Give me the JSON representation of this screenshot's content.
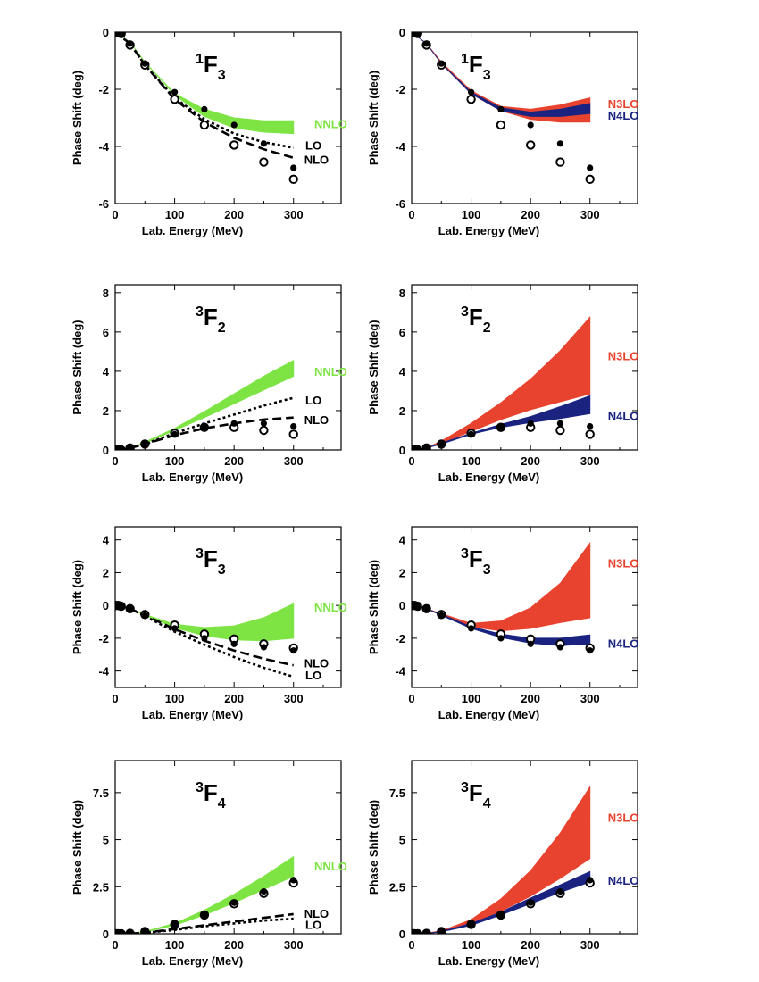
{
  "colors": {
    "nnlo": "#7de444",
    "n3lo": "#e8432e",
    "n4lo": "#1a2480",
    "black": "#000000"
  },
  "chart_data": [
    {
      "type": "line",
      "wave": {
        "sup": "1",
        "main": "F",
        "sub": "3"
      },
      "xlabel": "Lab. Energy (MeV)",
      "ylabel": "Phase Shift (deg)",
      "xlim": [
        0,
        380
      ],
      "ylim": [
        -6,
        0
      ],
      "xticks": [
        0,
        100,
        200,
        300
      ],
      "yticks": [
        -6,
        -4,
        -2,
        0
      ],
      "ytick_labels": [
        "-6",
        "-4",
        "-2",
        "0"
      ],
      "x": [
        0,
        25,
        50,
        100,
        150,
        200,
        250,
        300
      ],
      "bands": [
        {
          "name": "NNLO",
          "color_key": "nnlo",
          "low": [
            0,
            -0.35,
            -1.05,
            -2.2,
            -2.95,
            -3.35,
            -3.5,
            -3.55
          ],
          "high": [
            0,
            -0.35,
            -1.05,
            -2.15,
            -2.7,
            -3.0,
            -3.1,
            -3.1
          ]
        }
      ],
      "lines": [
        {
          "name": "LO",
          "style": "dotted",
          "values": [
            0,
            -0.4,
            -1.15,
            -2.3,
            -3.05,
            -3.55,
            -3.85,
            -4.05
          ]
        },
        {
          "name": "NLO",
          "style": "dashed",
          "values": [
            0,
            -0.4,
            -1.15,
            -2.35,
            -3.15,
            -3.7,
            -4.1,
            -4.4
          ]
        }
      ],
      "data_points": {
        "x": [
          1,
          5,
          10,
          25,
          50,
          100,
          150,
          200,
          250,
          300
        ],
        "filled": [
          0,
          0,
          -0.05,
          -0.4,
          -1.1,
          -2.1,
          -2.7,
          -3.25,
          -3.9,
          -4.75
        ],
        "open": [
          0,
          0,
          -0.05,
          -0.45,
          -1.15,
          -2.35,
          -3.25,
          -3.95,
          -4.55,
          -5.15
        ]
      },
      "labels": [
        {
          "text": "NNLO",
          "color_key": "nnlo",
          "x": 335,
          "y": -3.2
        },
        {
          "text": "LO",
          "color_key": "black",
          "x": 320,
          "y": -3.95
        },
        {
          "text": "NLO",
          "color_key": "black",
          "x": 318,
          "y": -4.45
        }
      ]
    },
    {
      "type": "line",
      "wave": {
        "sup": "1",
        "main": "F",
        "sub": "3"
      },
      "xlabel": "Lab. Energy (MeV)",
      "ylabel": "Phase Shift (deg)",
      "xlim": [
        0,
        380
      ],
      "ylim": [
        -6,
        0
      ],
      "xticks": [
        0,
        100,
        200,
        300
      ],
      "yticks": [
        -6,
        -4,
        -2,
        0
      ],
      "ytick_labels": [
        "-6",
        "-4",
        "-2",
        "0"
      ],
      "x": [
        0,
        25,
        50,
        100,
        150,
        200,
        250,
        300
      ],
      "bands": [
        {
          "name": "N3LO",
          "color_key": "n3lo",
          "low": [
            0,
            -0.4,
            -1.1,
            -2.15,
            -2.75,
            -3.05,
            -3.15,
            -3.15
          ],
          "high": [
            0,
            -0.4,
            -1.05,
            -2.05,
            -2.6,
            -2.7,
            -2.55,
            -2.3
          ]
        },
        {
          "name": "N4LO",
          "color_key": "n4lo",
          "low": [
            0,
            -0.4,
            -1.1,
            -2.15,
            -2.75,
            -2.95,
            -2.95,
            -2.85
          ],
          "high": [
            0,
            -0.4,
            -1.1,
            -2.1,
            -2.65,
            -2.8,
            -2.7,
            -2.5
          ]
        }
      ],
      "lines": [],
      "data_points": {
        "x": [
          1,
          5,
          10,
          25,
          50,
          100,
          150,
          200,
          250,
          300
        ],
        "filled": [
          0,
          0,
          -0.05,
          -0.4,
          -1.1,
          -2.1,
          -2.7,
          -3.25,
          -3.9,
          -4.75
        ],
        "open": [
          0,
          0,
          -0.05,
          -0.45,
          -1.15,
          -2.35,
          -3.25,
          -3.95,
          -4.55,
          -5.15
        ]
      },
      "labels": [
        {
          "text": "N3LO",
          "color_key": "n3lo",
          "x": 330,
          "y": -2.5
        },
        {
          "text": "N4LO",
          "color_key": "n4lo",
          "x": 330,
          "y": -2.9
        }
      ]
    },
    {
      "type": "line",
      "wave": {
        "sup": "3",
        "main": "F",
        "sub": "2"
      },
      "xlabel": "Lab. Energy (MeV)",
      "ylabel": "Phase Shift (deg)",
      "xlim": [
        0,
        380
      ],
      "ylim": [
        0,
        8.4
      ],
      "xticks": [
        0,
        100,
        200,
        300
      ],
      "yticks": [
        0,
        2,
        4,
        6,
        8
      ],
      "ytick_labels": [
        "0",
        "2",
        "4",
        "6",
        "8"
      ],
      "x": [
        0,
        25,
        50,
        100,
        150,
        200,
        250,
        300
      ],
      "bands": [
        {
          "name": "NNLO",
          "color_key": "nnlo",
          "low": [
            0,
            0.1,
            0.35,
            1.0,
            1.65,
            2.35,
            3.05,
            3.75
          ],
          "high": [
            0,
            0.1,
            0.4,
            1.1,
            1.95,
            2.85,
            3.75,
            4.55
          ]
        }
      ],
      "lines": [
        {
          "name": "LO",
          "style": "dotted",
          "values": [
            0,
            0.1,
            0.3,
            0.85,
            1.35,
            1.8,
            2.25,
            2.65
          ]
        },
        {
          "name": "NLO",
          "style": "dashed",
          "values": [
            0,
            0.1,
            0.3,
            0.75,
            1.1,
            1.35,
            1.55,
            1.65
          ]
        }
      ],
      "data_points": {
        "x": [
          1,
          5,
          10,
          25,
          50,
          100,
          150,
          200,
          250,
          300
        ],
        "filled": [
          0,
          0,
          0,
          0.1,
          0.3,
          0.8,
          1.15,
          1.35,
          1.35,
          1.2
        ],
        "open": [
          0,
          0,
          0,
          0.1,
          0.3,
          0.85,
          1.15,
          1.15,
          1.0,
          0.8
        ]
      },
      "labels": [
        {
          "text": "NNLO",
          "color_key": "nnlo",
          "x": 335,
          "y": 4.0
        },
        {
          "text": "LO",
          "color_key": "black",
          "x": 320,
          "y": 2.55
        },
        {
          "text": "NLO",
          "color_key": "black",
          "x": 318,
          "y": 1.55
        }
      ]
    },
    {
      "type": "line",
      "wave": {
        "sup": "3",
        "main": "F",
        "sub": "2"
      },
      "xlabel": "Lab. Energy (MeV)",
      "ylabel": "Phase Shift (deg)",
      "xlim": [
        0,
        380
      ],
      "ylim": [
        0,
        8.4
      ],
      "xticks": [
        0,
        100,
        200,
        300
      ],
      "yticks": [
        0,
        2,
        4,
        6,
        8
      ],
      "ytick_labels": [
        "0",
        "2",
        "4",
        "6",
        "8"
      ],
      "x": [
        0,
        25,
        50,
        100,
        150,
        200,
        250,
        300
      ],
      "bands": [
        {
          "name": "N3LO",
          "color_key": "n3lo",
          "low": [
            0,
            0.1,
            0.35,
            0.95,
            1.55,
            2.05,
            2.45,
            2.85
          ],
          "high": [
            0,
            0.1,
            0.45,
            1.35,
            2.4,
            3.6,
            5.05,
            6.75
          ]
        },
        {
          "name": "N4LO",
          "color_key": "n4lo",
          "low": [
            0,
            0.1,
            0.3,
            0.8,
            1.15,
            1.4,
            1.6,
            1.85
          ],
          "high": [
            0,
            0.1,
            0.35,
            0.85,
            1.3,
            1.7,
            2.2,
            2.75
          ]
        }
      ],
      "lines": [],
      "data_points": {
        "x": [
          1,
          5,
          10,
          25,
          50,
          100,
          150,
          200,
          250,
          300
        ],
        "filled": [
          0,
          0,
          0,
          0.1,
          0.3,
          0.8,
          1.15,
          1.35,
          1.35,
          1.2
        ],
        "open": [
          0,
          0,
          0,
          0.1,
          0.3,
          0.85,
          1.15,
          1.15,
          1.0,
          0.8
        ]
      },
      "labels": [
        {
          "text": "N3LO",
          "color_key": "n3lo",
          "x": 330,
          "y": 4.8
        },
        {
          "text": "N4LO",
          "color_key": "n4lo",
          "x": 330,
          "y": 1.75
        }
      ]
    },
    {
      "type": "line",
      "wave": {
        "sup": "3",
        "main": "F",
        "sub": "3"
      },
      "xlabel": "Lab. Energy (MeV)",
      "ylabel": "Phase Shift (deg)",
      "xlim": [
        0,
        380
      ],
      "ylim": [
        -5,
        4.8
      ],
      "xticks": [
        0,
        100,
        200,
        300
      ],
      "yticks": [
        -4,
        -2,
        0,
        2,
        4
      ],
      "ytick_labels": [
        "-4",
        "-2",
        "0",
        "2",
        "4"
      ],
      "x": [
        0,
        25,
        50,
        100,
        150,
        200,
        250,
        300
      ],
      "bands": [
        {
          "name": "NNLO",
          "color_key": "nnlo",
          "low": [
            0,
            -0.2,
            -0.6,
            -1.35,
            -1.85,
            -2.1,
            -2.15,
            -2.0
          ],
          "high": [
            0,
            -0.2,
            -0.55,
            -1.15,
            -1.35,
            -1.25,
            -0.75,
            0.1
          ]
        }
      ],
      "lines": [
        {
          "name": "LO",
          "style": "dotted",
          "values": [
            0,
            -0.2,
            -0.65,
            -1.6,
            -2.4,
            -3.15,
            -3.8,
            -4.35
          ]
        },
        {
          "name": "NLO",
          "style": "dashed",
          "values": [
            0,
            -0.2,
            -0.6,
            -1.45,
            -2.15,
            -2.75,
            -3.25,
            -3.65
          ]
        }
      ],
      "data_points": {
        "x": [
          1,
          5,
          10,
          25,
          50,
          100,
          150,
          200,
          250,
          300
        ],
        "filled": [
          0,
          0,
          -0.05,
          -0.2,
          -0.6,
          -1.4,
          -2.0,
          -2.35,
          -2.55,
          -2.75
        ],
        "open": [
          0,
          0,
          -0.05,
          -0.2,
          -0.55,
          -1.2,
          -1.75,
          -2.05,
          -2.35,
          -2.6
        ]
      },
      "labels": [
        {
          "text": "NNLO",
          "color_key": "nnlo",
          "x": 335,
          "y": -0.1
        },
        {
          "text": "NLO",
          "color_key": "black",
          "x": 318,
          "y": -3.5
        },
        {
          "text": "LO",
          "color_key": "black",
          "x": 320,
          "y": -4.25
        }
      ]
    },
    {
      "type": "line",
      "wave": {
        "sup": "3",
        "main": "F",
        "sub": "3"
      },
      "xlabel": "Lab. Energy (MeV)",
      "ylabel": "Phase Shift (deg)",
      "xlim": [
        0,
        380
      ],
      "ylim": [
        -5,
        4.8
      ],
      "xticks": [
        0,
        100,
        200,
        300
      ],
      "yticks": [
        -4,
        -2,
        0,
        2,
        4
      ],
      "ytick_labels": [
        "-4",
        "-2",
        "0",
        "2",
        "4"
      ],
      "x": [
        0,
        25,
        50,
        100,
        150,
        200,
        250,
        300
      ],
      "bands": [
        {
          "name": "N3LO",
          "color_key": "n3lo",
          "low": [
            0,
            -0.2,
            -0.6,
            -1.3,
            -1.55,
            -1.4,
            -1.05,
            -0.75
          ],
          "high": [
            0,
            -0.2,
            -0.5,
            -1.1,
            -0.95,
            -0.15,
            1.35,
            3.8
          ]
        },
        {
          "name": "N4LO",
          "color_key": "n4lo",
          "low": [
            0,
            -0.2,
            -0.6,
            -1.4,
            -1.95,
            -2.3,
            -2.45,
            -2.35
          ],
          "high": [
            0,
            -0.2,
            -0.55,
            -1.3,
            -1.75,
            -2.0,
            -2.0,
            -1.8
          ]
        }
      ],
      "lines": [],
      "data_points": {
        "x": [
          1,
          5,
          10,
          25,
          50,
          100,
          150,
          200,
          250,
          300
        ],
        "filled": [
          0,
          0,
          -0.05,
          -0.2,
          -0.6,
          -1.4,
          -2.0,
          -2.35,
          -2.55,
          -2.75
        ],
        "open": [
          0,
          0,
          -0.05,
          -0.2,
          -0.55,
          -1.2,
          -1.75,
          -2.05,
          -2.35,
          -2.6
        ]
      },
      "labels": [
        {
          "text": "N3LO",
          "color_key": "n3lo",
          "x": 330,
          "y": 2.6
        },
        {
          "text": "N4LO",
          "color_key": "n4lo",
          "x": 330,
          "y": -2.3
        }
      ]
    },
    {
      "type": "line",
      "wave": {
        "sup": "3",
        "main": "F",
        "sub": "4"
      },
      "xlabel": "Lab. Energy (MeV)",
      "ylabel": "Phase Shift (deg)",
      "xlim": [
        0,
        380
      ],
      "ylim": [
        0,
        9.2
      ],
      "xticks": [
        0,
        100,
        200,
        300
      ],
      "yticks": [
        0,
        2.5,
        5,
        7.5
      ],
      "ytick_labels": [
        "0",
        "2.5",
        "5",
        "7.5"
      ],
      "x": [
        0,
        25,
        50,
        100,
        150,
        200,
        250,
        300
      ],
      "bands": [
        {
          "name": "NNLO",
          "color_key": "nnlo",
          "low": [
            0,
            0.02,
            0.1,
            0.45,
            1.0,
            1.65,
            2.35,
            3.05
          ],
          "high": [
            0,
            0.02,
            0.12,
            0.55,
            1.25,
            2.1,
            3.05,
            4.1
          ]
        }
      ],
      "lines": [
        {
          "name": "LO",
          "style": "dotted",
          "values": [
            0,
            0.01,
            0.05,
            0.2,
            0.4,
            0.55,
            0.7,
            0.8
          ]
        },
        {
          "name": "NLO",
          "style": "dashed",
          "values": [
            0,
            0.01,
            0.05,
            0.25,
            0.45,
            0.65,
            0.85,
            1.05
          ]
        }
      ],
      "data_points": {
        "x": [
          1,
          5,
          10,
          25,
          50,
          100,
          150,
          200,
          250,
          300
        ],
        "filled": [
          0,
          0,
          0,
          0.02,
          0.12,
          0.5,
          1.0,
          1.65,
          2.25,
          2.85
        ],
        "open": [
          0,
          0,
          0,
          0.02,
          0.12,
          0.5,
          1.0,
          1.6,
          2.15,
          2.7
        ]
      },
      "labels": [
        {
          "text": "NNLO",
          "color_key": "nnlo",
          "x": 335,
          "y": 3.6
        },
        {
          "text": "NLO",
          "color_key": "black",
          "x": 318,
          "y": 1.1
        },
        {
          "text": "LO",
          "color_key": "black",
          "x": 320,
          "y": 0.5
        }
      ]
    },
    {
      "type": "line",
      "wave": {
        "sup": "3",
        "main": "F",
        "sub": "4"
      },
      "xlabel": "Lab. Energy (MeV)",
      "ylabel": "Phase Shift (deg)",
      "xlim": [
        0,
        380
      ],
      "ylim": [
        0,
        9.2
      ],
      "xticks": [
        0,
        100,
        200,
        300
      ],
      "yticks": [
        0,
        2.5,
        5,
        7.5
      ],
      "ytick_labels": [
        "0",
        "2.5",
        "5",
        "7.5"
      ],
      "x": [
        0,
        25,
        50,
        100,
        150,
        200,
        250,
        300
      ],
      "bands": [
        {
          "name": "N3LO",
          "color_key": "n3lo",
          "low": [
            0,
            0.02,
            0.12,
            0.55,
            1.2,
            2.0,
            2.95,
            4.0
          ],
          "high": [
            0,
            0.03,
            0.15,
            0.75,
            1.85,
            3.35,
            5.35,
            7.8
          ]
        },
        {
          "name": "N4LO",
          "color_key": "n4lo",
          "low": [
            0,
            0.02,
            0.1,
            0.45,
            1.0,
            1.6,
            2.2,
            2.75
          ],
          "high": [
            0,
            0.02,
            0.12,
            0.55,
            1.15,
            1.9,
            2.6,
            3.3
          ]
        }
      ],
      "lines": [],
      "data_points": {
        "x": [
          1,
          5,
          10,
          25,
          50,
          100,
          150,
          200,
          250,
          300
        ],
        "filled": [
          0,
          0,
          0,
          0.02,
          0.12,
          0.5,
          1.0,
          1.65,
          2.25,
          2.85
        ],
        "open": [
          0,
          0,
          0,
          0.02,
          0.12,
          0.5,
          1.0,
          1.6,
          2.15,
          2.7
        ]
      },
      "labels": [
        {
          "text": "N3LO",
          "color_key": "n3lo",
          "x": 330,
          "y": 6.2
        },
        {
          "text": "N4LO",
          "color_key": "n4lo",
          "x": 330,
          "y": 2.85
        }
      ]
    }
  ]
}
